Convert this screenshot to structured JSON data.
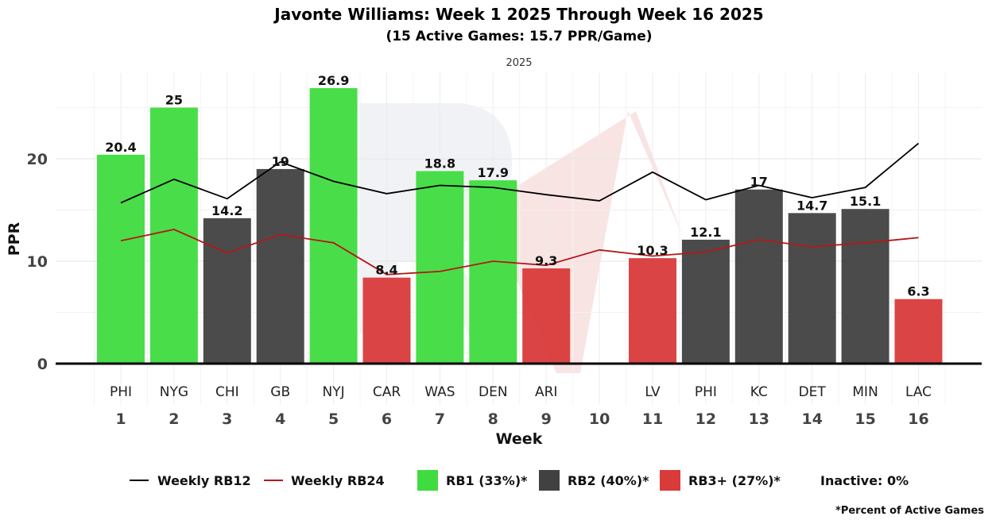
{
  "chart_data": {
    "type": "bar",
    "title": "Javonte Williams: Week 1 2025 Through Week 16 2025",
    "subtitle": "(15 Active Games: 15.7 PPR/Game)",
    "facet_label": "2025",
    "xlabel": "Week",
    "ylabel": "PPR",
    "ylim": [
      0,
      29
    ],
    "yticks": [
      0,
      10,
      20
    ],
    "weeks": [
      1,
      2,
      3,
      4,
      5,
      6,
      7,
      8,
      9,
      10,
      11,
      12,
      13,
      14,
      15,
      16
    ],
    "opponents": [
      "PHI",
      "NYG",
      "CHI",
      "GB",
      "NYJ",
      "CAR",
      "WAS",
      "DEN",
      "ARI",
      "",
      "LV",
      "PHI",
      "KC",
      "DET",
      "MIN",
      "LAC"
    ],
    "values": [
      20.4,
      25,
      14.2,
      19,
      26.9,
      8.4,
      18.8,
      17.9,
      9.3,
      null,
      10.3,
      12.1,
      17,
      14.7,
      15.1,
      6.3
    ],
    "value_labels": [
      "20.4",
      "25",
      "14.2",
      "19",
      "26.9",
      "8.4",
      "18.8",
      "17.9",
      "9.3",
      "",
      "10.3",
      "12.1",
      "17",
      "14.7",
      "15.1",
      "6.3"
    ],
    "tiers": [
      "RB1",
      "RB1",
      "RB2",
      "RB2",
      "RB1",
      "RB3+",
      "RB1",
      "RB1",
      "RB3+",
      null,
      "RB3+",
      "RB2",
      "RB2",
      "RB2",
      "RB2",
      "RB3+"
    ],
    "series": [
      {
        "name": "Weekly RB12",
        "color": "#000000",
        "values": [
          15.7,
          18.0,
          16.1,
          19.7,
          17.8,
          16.6,
          17.4,
          17.2,
          16.5,
          15.9,
          18.7,
          16.0,
          17.4,
          16.2,
          17.2,
          21.5
        ]
      },
      {
        "name": "Weekly RB24",
        "color": "#b41818",
        "values": [
          12.0,
          13.1,
          10.8,
          12.6,
          11.8,
          8.7,
          9.0,
          10.0,
          9.6,
          11.1,
          10.5,
          10.9,
          12.1,
          11.4,
          11.8,
          12.3
        ]
      }
    ],
    "tier_colors": {
      "RB1": "#3fdc3f",
      "RB2": "#414141",
      "RB3+": "#d93a3a"
    },
    "legend": {
      "rb12": "Weekly RB12",
      "rb24": "Weekly RB24",
      "rb1": "RB1 (33%)*",
      "rb2": "RB2 (40%)*",
      "rb3": "RB3+ (27%)*",
      "inactive": "Inactive: 0%"
    },
    "footnote": "*Percent of Active Games"
  }
}
